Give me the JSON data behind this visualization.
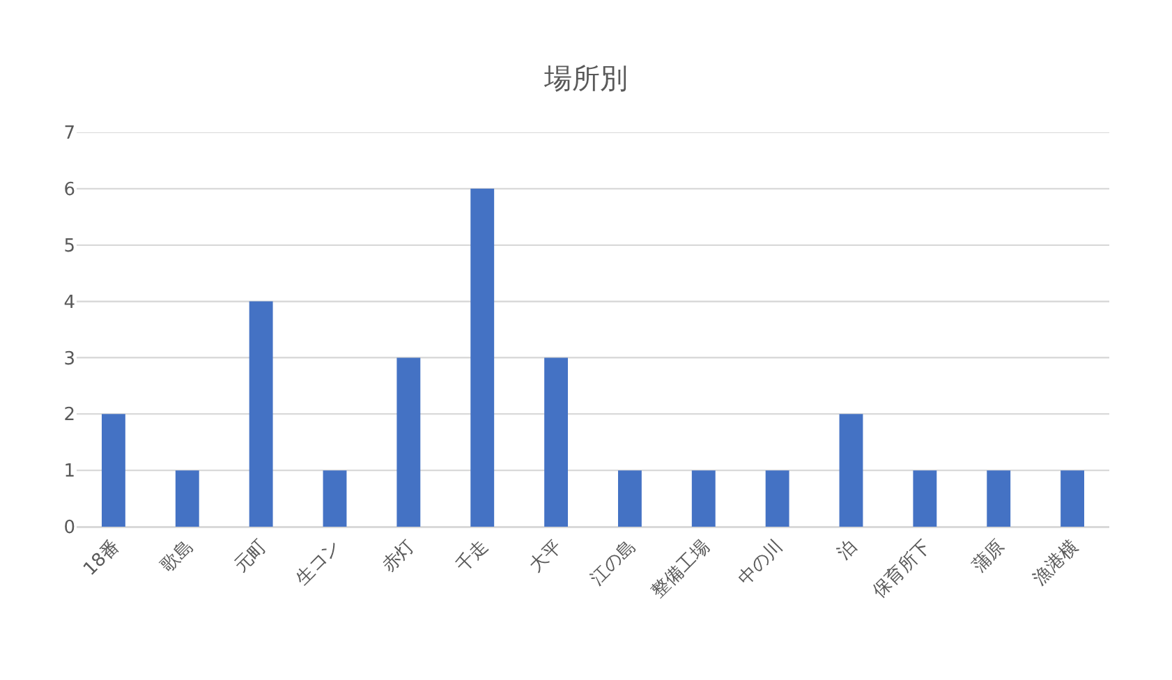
{
  "chart_data": {
    "type": "bar",
    "title": "場所別",
    "categories": [
      "18番",
      "歌島",
      "元町",
      "生コン",
      "赤灯",
      "千走",
      "大平",
      "江の島",
      "整備工場",
      "中の川",
      "泊",
      "保育所下",
      "蒲原",
      "漁港横"
    ],
    "values": [
      2,
      1,
      4,
      1,
      3,
      6,
      3,
      1,
      1,
      1,
      2,
      1,
      1,
      1
    ],
    "color": "#4472c4",
    "ylim": [
      0,
      7
    ],
    "yticks": [
      0,
      1,
      2,
      3,
      4,
      5,
      6,
      7
    ],
    "grid": "y"
  }
}
